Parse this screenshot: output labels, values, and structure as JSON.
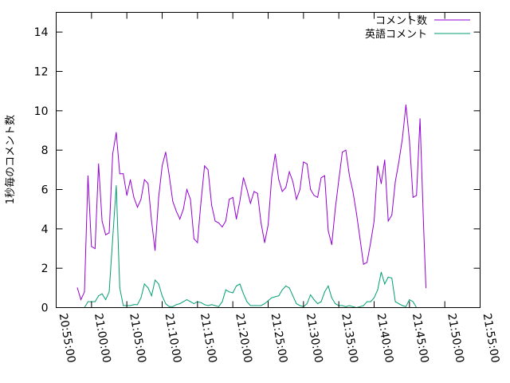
{
  "chart_data": {
    "type": "line",
    "title": "",
    "xlabel": "",
    "ylabel": "1秒毎のコメント数",
    "ylim": [
      0,
      15
    ],
    "yticks": [
      0,
      2,
      4,
      6,
      8,
      10,
      12,
      14
    ],
    "xlim": [
      "20:55:00",
      "21:55:00"
    ],
    "xticks": [
      "20:55:00",
      "21:00:00",
      "21:05:00",
      "21:10:00",
      "21:15:00",
      "21:20:00",
      "21:25:00",
      "21:30:00",
      "21:35:00",
      "21:40:00",
      "21:45:00",
      "21:50:00",
      "21:55:00"
    ],
    "grid": false,
    "legend": "top-right",
    "series": [
      {
        "name": "コメント数",
        "color": "#9400d3",
        "points": [
          [
            "20:58:00",
            1.0
          ],
          [
            "20:58:30",
            0.4
          ],
          [
            "20:59:00",
            0.8
          ],
          [
            "20:59:30",
            6.7
          ],
          [
            "21:00:00",
            3.1
          ],
          [
            "21:00:30",
            3.0
          ],
          [
            "21:01:00",
            7.3
          ],
          [
            "21:01:30",
            4.4
          ],
          [
            "21:02:00",
            3.7
          ],
          [
            "21:02:30",
            3.8
          ],
          [
            "21:03:00",
            7.8
          ],
          [
            "21:03:30",
            8.9
          ],
          [
            "21:04:00",
            6.8
          ],
          [
            "21:04:30",
            6.8
          ],
          [
            "21:05:00",
            5.7
          ],
          [
            "21:05:30",
            6.5
          ],
          [
            "21:06:00",
            5.6
          ],
          [
            "21:06:30",
            5.1
          ],
          [
            "21:07:00",
            5.5
          ],
          [
            "21:07:30",
            6.5
          ],
          [
            "21:08:00",
            6.3
          ],
          [
            "21:08:30",
            4.4
          ],
          [
            "21:09:00",
            2.9
          ],
          [
            "21:09:30",
            5.6
          ],
          [
            "21:10:00",
            7.2
          ],
          [
            "21:10:30",
            7.9
          ],
          [
            "21:11:00",
            6.7
          ],
          [
            "21:11:30",
            5.4
          ],
          [
            "21:12:00",
            4.9
          ],
          [
            "21:12:30",
            4.5
          ],
          [
            "21:13:00",
            5.0
          ],
          [
            "21:13:30",
            6.0
          ],
          [
            "21:14:00",
            5.5
          ],
          [
            "21:14:30",
            3.5
          ],
          [
            "21:15:00",
            3.3
          ],
          [
            "21:15:30",
            5.4
          ],
          [
            "21:16:00",
            7.2
          ],
          [
            "21:16:30",
            7.0
          ],
          [
            "21:17:00",
            5.2
          ],
          [
            "21:17:30",
            4.4
          ],
          [
            "21:18:00",
            4.3
          ],
          [
            "21:18:30",
            4.1
          ],
          [
            "21:19:00",
            4.4
          ],
          [
            "21:19:30",
            5.5
          ],
          [
            "21:20:00",
            5.6
          ],
          [
            "21:20:30",
            4.5
          ],
          [
            "21:21:00",
            5.4
          ],
          [
            "21:21:30",
            6.6
          ],
          [
            "21:22:00",
            6.0
          ],
          [
            "21:22:30",
            5.3
          ],
          [
            "21:23:00",
            5.9
          ],
          [
            "21:23:30",
            5.8
          ],
          [
            "21:24:00",
            4.3
          ],
          [
            "21:24:30",
            3.3
          ],
          [
            "21:25:00",
            4.2
          ],
          [
            "21:25:30",
            6.6
          ],
          [
            "21:26:00",
            7.8
          ],
          [
            "21:26:30",
            6.5
          ],
          [
            "21:27:00",
            5.9
          ],
          [
            "21:27:30",
            6.1
          ],
          [
            "21:28:00",
            6.9
          ],
          [
            "21:28:30",
            6.4
          ],
          [
            "21:29:00",
            5.5
          ],
          [
            "21:29:30",
            6.0
          ],
          [
            "21:30:00",
            7.4
          ],
          [
            "21:30:30",
            7.3
          ],
          [
            "21:31:00",
            6.0
          ],
          [
            "21:31:30",
            5.7
          ],
          [
            "21:32:00",
            5.6
          ],
          [
            "21:32:30",
            6.6
          ],
          [
            "21:33:00",
            6.7
          ],
          [
            "21:33:30",
            3.9
          ],
          [
            "21:34:00",
            3.2
          ],
          [
            "21:34:30",
            5.0
          ],
          [
            "21:35:00",
            6.5
          ],
          [
            "21:35:30",
            7.9
          ],
          [
            "21:36:00",
            8.0
          ],
          [
            "21:36:30",
            6.7
          ],
          [
            "21:37:00",
            5.9
          ],
          [
            "21:37:30",
            4.8
          ],
          [
            "21:38:00",
            3.5
          ],
          [
            "21:38:30",
            2.2
          ],
          [
            "21:39:00",
            2.3
          ],
          [
            "21:39:30",
            3.3
          ],
          [
            "21:40:00",
            4.4
          ],
          [
            "21:40:30",
            7.2
          ],
          [
            "21:41:00",
            6.3
          ],
          [
            "21:41:30",
            7.5
          ],
          [
            "21:42:00",
            4.4
          ],
          [
            "21:42:30",
            4.7
          ],
          [
            "21:43:00",
            6.4
          ],
          [
            "21:43:30",
            7.4
          ],
          [
            "21:44:00",
            8.6
          ],
          [
            "21:44:30",
            10.3
          ],
          [
            "21:45:00",
            8.5
          ],
          [
            "21:45:30",
            5.6
          ],
          [
            "21:46:00",
            5.7
          ],
          [
            "21:46:30",
            9.6
          ],
          [
            "21:47:00",
            4.1
          ],
          [
            "21:47:20",
            1.0
          ]
        ]
      },
      {
        "name": "英語コメント",
        "color": "#009e73",
        "points": [
          [
            "20:58:30",
            0.0
          ],
          [
            "20:59:00",
            0.0
          ],
          [
            "20:59:30",
            0.3
          ],
          [
            "21:00:00",
            0.3
          ],
          [
            "21:00:30",
            0.3
          ],
          [
            "21:01:00",
            0.6
          ],
          [
            "21:01:30",
            0.7
          ],
          [
            "21:02:00",
            0.4
          ],
          [
            "21:02:30",
            0.8
          ],
          [
            "21:03:00",
            3.5
          ],
          [
            "21:03:30",
            6.2
          ],
          [
            "21:04:00",
            1.0
          ],
          [
            "21:04:30",
            0.1
          ],
          [
            "21:05:00",
            0.1
          ],
          [
            "21:05:30",
            0.1
          ],
          [
            "21:06:00",
            0.15
          ],
          [
            "21:06:30",
            0.15
          ],
          [
            "21:07:00",
            0.5
          ],
          [
            "21:07:30",
            1.2
          ],
          [
            "21:08:00",
            1.0
          ],
          [
            "21:08:30",
            0.6
          ],
          [
            "21:09:00",
            1.4
          ],
          [
            "21:09:30",
            1.2
          ],
          [
            "21:10:00",
            0.6
          ],
          [
            "21:10:30",
            0.2
          ],
          [
            "21:11:00",
            0.05
          ],
          [
            "21:11:30",
            0.05
          ],
          [
            "21:12:00",
            0.15
          ],
          [
            "21:12:30",
            0.2
          ],
          [
            "21:13:00",
            0.3
          ],
          [
            "21:13:30",
            0.4
          ],
          [
            "21:14:00",
            0.3
          ],
          [
            "21:14:30",
            0.2
          ],
          [
            "21:15:00",
            0.3
          ],
          [
            "21:15:30",
            0.25
          ],
          [
            "21:16:00",
            0.15
          ],
          [
            "21:16:30",
            0.1
          ],
          [
            "21:17:00",
            0.15
          ],
          [
            "21:17:30",
            0.1
          ],
          [
            "21:18:00",
            0.05
          ],
          [
            "21:18:30",
            0.3
          ],
          [
            "21:19:00",
            0.9
          ],
          [
            "21:19:30",
            0.8
          ],
          [
            "21:20:00",
            0.75
          ],
          [
            "21:20:30",
            1.1
          ],
          [
            "21:21:00",
            1.2
          ],
          [
            "21:21:30",
            0.7
          ],
          [
            "21:22:00",
            0.3
          ],
          [
            "21:22:30",
            0.1
          ],
          [
            "21:23:00",
            0.1
          ],
          [
            "21:23:30",
            0.1
          ],
          [
            "21:24:00",
            0.1
          ],
          [
            "21:24:30",
            0.2
          ],
          [
            "21:25:00",
            0.35
          ],
          [
            "21:25:30",
            0.5
          ],
          [
            "21:26:00",
            0.55
          ],
          [
            "21:26:30",
            0.6
          ],
          [
            "21:27:00",
            0.9
          ],
          [
            "21:27:30",
            1.1
          ],
          [
            "21:28:00",
            1.0
          ],
          [
            "21:28:30",
            0.6
          ],
          [
            "21:29:00",
            0.2
          ],
          [
            "21:29:30",
            0.1
          ],
          [
            "21:30:00",
            0.05
          ],
          [
            "21:30:30",
            0.2
          ],
          [
            "21:31:00",
            0.65
          ],
          [
            "21:31:30",
            0.4
          ],
          [
            "21:32:00",
            0.2
          ],
          [
            "21:32:30",
            0.3
          ],
          [
            "21:33:00",
            0.8
          ],
          [
            "21:33:30",
            1.1
          ],
          [
            "21:34:00",
            0.5
          ],
          [
            "21:34:30",
            0.2
          ],
          [
            "21:35:00",
            0.1
          ],
          [
            "21:35:30",
            0.1
          ],
          [
            "21:36:00",
            0.05
          ],
          [
            "21:36:30",
            0.1
          ],
          [
            "21:37:00",
            0.05
          ],
          [
            "21:37:30",
            0.0
          ],
          [
            "21:38:00",
            0.05
          ],
          [
            "21:38:30",
            0.1
          ],
          [
            "21:39:00",
            0.3
          ],
          [
            "21:39:30",
            0.3
          ],
          [
            "21:40:00",
            0.5
          ],
          [
            "21:40:30",
            0.9
          ],
          [
            "21:41:00",
            1.8
          ],
          [
            "21:41:30",
            1.2
          ],
          [
            "21:42:00",
            1.55
          ],
          [
            "21:42:30",
            1.5
          ],
          [
            "21:43:00",
            0.3
          ],
          [
            "21:43:30",
            0.2
          ],
          [
            "21:44:00",
            0.1
          ],
          [
            "21:44:30",
            0.05
          ],
          [
            "21:45:00",
            0.4
          ],
          [
            "21:45:30",
            0.3
          ],
          [
            "21:46:00",
            0.0
          ]
        ]
      }
    ]
  }
}
